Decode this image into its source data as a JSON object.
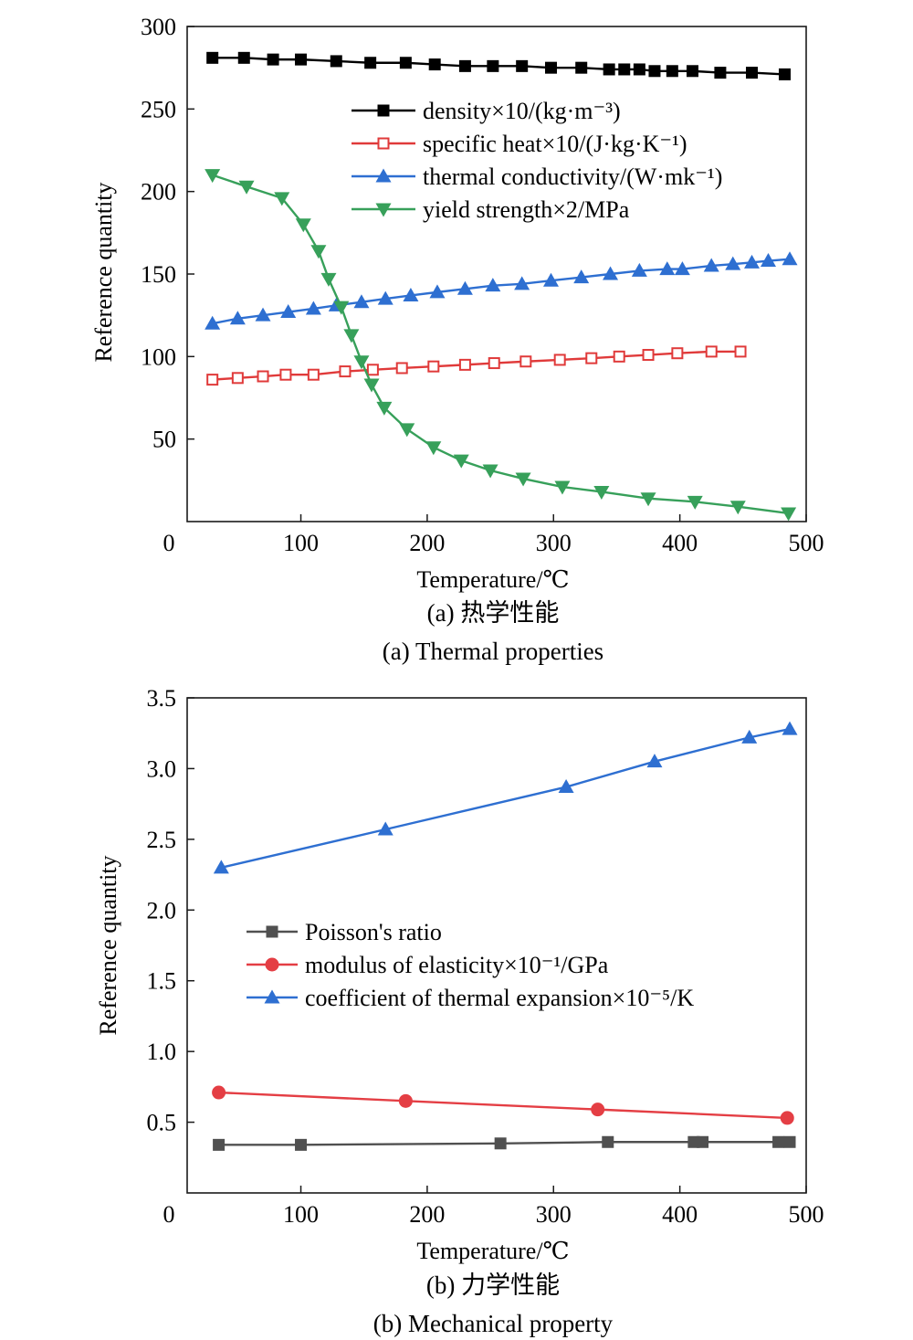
{
  "figure": {
    "caption_a_cn": "(a) 热学性能",
    "caption_a_en": "(a) Thermal properties",
    "caption_b_cn": "(b) 力学性能",
    "caption_b_en": "(b) Mechanical property"
  },
  "chart_data": [
    {
      "type": "line",
      "xlabel": "Temperature/℃",
      "ylabel": "Reference quantity",
      "xlim": [
        10,
        500
      ],
      "ylim": [
        0,
        300
      ],
      "xticks": [
        0,
        100,
        200,
        300,
        400,
        500
      ],
      "yticks": [
        0,
        50,
        100,
        150,
        200,
        250,
        300
      ],
      "legend_position": "upper-right",
      "grid": false,
      "series": [
        {
          "name": "density×10/(kg·m⁻³)",
          "color": "#000000",
          "marker": "square-filled",
          "x": [
            30,
            55,
            78,
            100,
            128,
            155,
            183,
            206,
            230,
            252,
            275,
            298,
            322,
            344,
            356,
            368,
            380,
            394,
            410,
            432,
            457,
            483
          ],
          "y": [
            281,
            281,
            280,
            280,
            279,
            278,
            278,
            277,
            276,
            276,
            276,
            275,
            275,
            274,
            274,
            274,
            273,
            273,
            273,
            272,
            272,
            271
          ]
        },
        {
          "name": "specific heat×10/(J·kg·K⁻¹)",
          "color": "#e03a3a",
          "marker": "square-open",
          "x": [
            30,
            50,
            70,
            88,
            110,
            135,
            157,
            180,
            205,
            230,
            253,
            278,
            305,
            330,
            352,
            375,
            398,
            425,
            448
          ],
          "y": [
            86,
            87,
            88,
            89,
            89,
            91,
            92,
            93,
            94,
            95,
            96,
            97,
            98,
            99,
            100,
            101,
            102,
            103,
            103
          ]
        },
        {
          "name": "thermal conductivity/(W·mk⁻¹)",
          "color": "#2e6fd1",
          "marker": "triangle-up",
          "x": [
            30,
            50,
            70,
            90,
            110,
            128,
            148,
            167,
            187,
            208,
            230,
            252,
            275,
            298,
            322,
            345,
            368,
            390,
            402,
            425,
            442,
            457,
            470,
            487
          ],
          "y": [
            120,
            123,
            125,
            127,
            129,
            131,
            133,
            135,
            137,
            139,
            141,
            143,
            144,
            146,
            148,
            150,
            152,
            153,
            153,
            155,
            156,
            157,
            158,
            159
          ]
        },
        {
          "name": "yield strength×2/MPa",
          "color": "#37a05a",
          "marker": "triangle-down",
          "x": [
            30,
            57,
            85,
            102,
            114,
            122,
            132,
            140,
            148,
            156,
            166,
            184,
            205,
            227,
            250,
            276,
            307,
            338,
            375,
            412,
            446,
            486
          ],
          "y": [
            210,
            203,
            196,
            180,
            164,
            147,
            130,
            113,
            97,
            83,
            69,
            56,
            45,
            37,
            31,
            26,
            21,
            18,
            14,
            12,
            9,
            5
          ]
        }
      ]
    },
    {
      "type": "line",
      "xlabel": "Temperature/℃",
      "ylabel": "Reference quantity",
      "xlim": [
        10,
        500
      ],
      "ylim": [
        0,
        3.5
      ],
      "xticks": [
        0,
        100,
        200,
        300,
        400,
        500
      ],
      "yticks": [
        0.5,
        1.0,
        1.5,
        2.0,
        2.5,
        3.0,
        3.5
      ],
      "legend_position": "center-left",
      "grid": false,
      "series": [
        {
          "name": "Poisson's ratio",
          "color": "#505050",
          "marker": "square-filled",
          "x": [
            35,
            100,
            258,
            343,
            411,
            418,
            478,
            487
          ],
          "y": [
            0.34,
            0.34,
            0.35,
            0.36,
            0.36,
            0.36,
            0.36,
            0.36
          ]
        },
        {
          "name": "modulus of elasticity×10⁻¹/GPa",
          "color": "#e43e44",
          "marker": "circle",
          "x": [
            35,
            183,
            335,
            485
          ],
          "y": [
            0.71,
            0.65,
            0.59,
            0.53
          ]
        },
        {
          "name": "coefficient of thermal expansion×10⁻⁵/K",
          "color": "#2e6fd1",
          "marker": "triangle-up",
          "x": [
            37,
            167,
            310,
            380,
            455,
            487
          ],
          "y": [
            2.3,
            2.57,
            2.87,
            3.05,
            3.22,
            3.28
          ]
        }
      ]
    }
  ]
}
